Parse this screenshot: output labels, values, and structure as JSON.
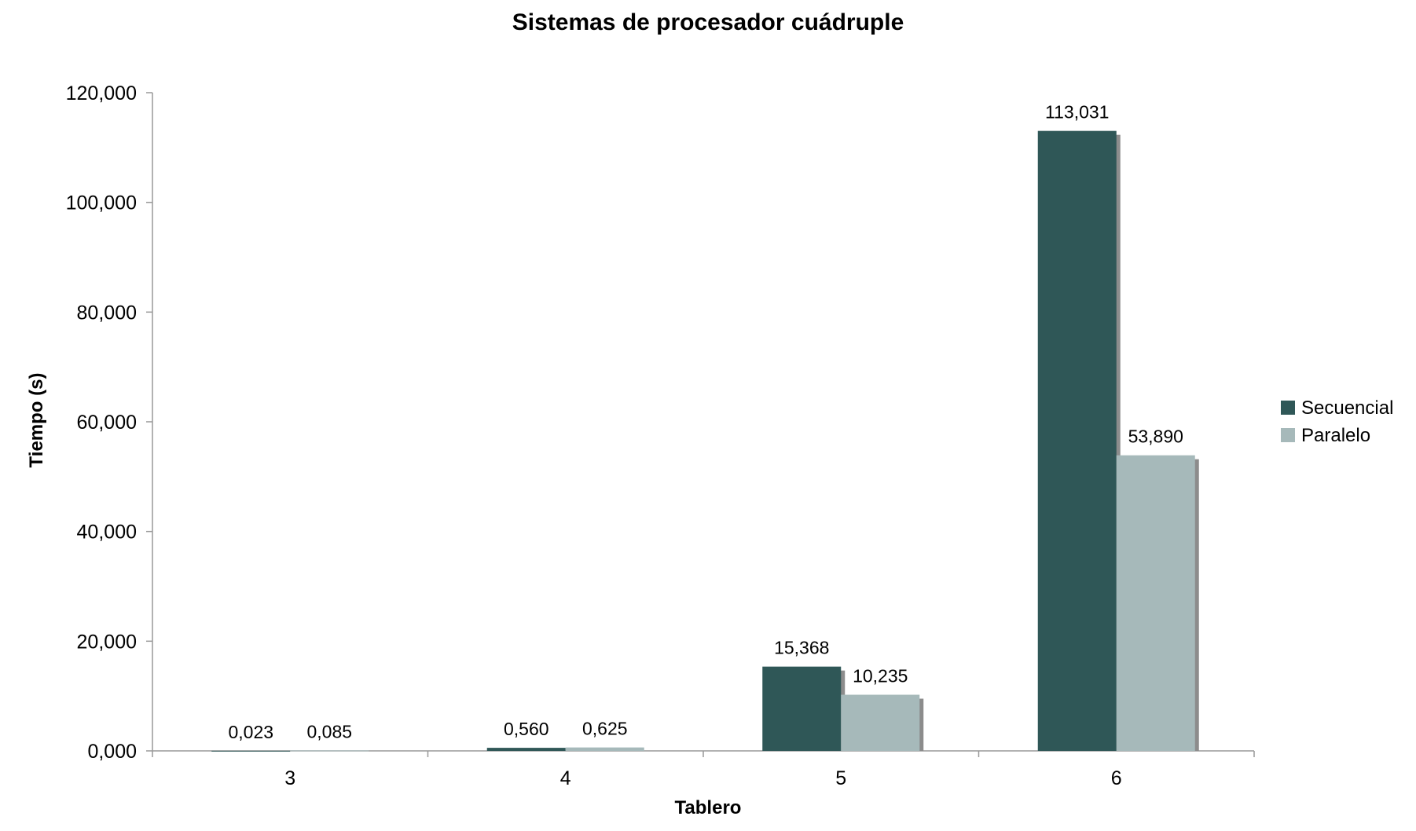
{
  "chart_data": {
    "type": "bar",
    "title": "Sistemas de procesador cuádruple",
    "xlabel": "Tablero",
    "ylabel": "Tiempo (s)",
    "categories": [
      "3",
      "4",
      "5",
      "6"
    ],
    "series": [
      {
        "name": "Secuencial",
        "values": [
          0.023,
          0.56,
          15.368,
          113.031
        ],
        "labels": [
          "0,023",
          "0,560",
          "15,368",
          "113,031"
        ],
        "color": "#2f5757"
      },
      {
        "name": "Paralelo",
        "values": [
          0.085,
          0.625,
          10.235,
          53.89
        ],
        "labels": [
          "0,085",
          "0,625",
          "10,235",
          "53,890"
        ],
        "color": "#a6b9ba"
      }
    ],
    "ylim": [
      0,
      120
    ],
    "yticks": [
      0,
      20,
      40,
      60,
      80,
      100,
      120
    ],
    "ytick_labels": [
      "0,000",
      "20,000",
      "40,000",
      "60,000",
      "80,000",
      "100,000",
      "120,000"
    ],
    "grid": false,
    "legend_position": "right",
    "bar_shadow_color": "#8c8c8c",
    "axis_color": "#999999"
  }
}
